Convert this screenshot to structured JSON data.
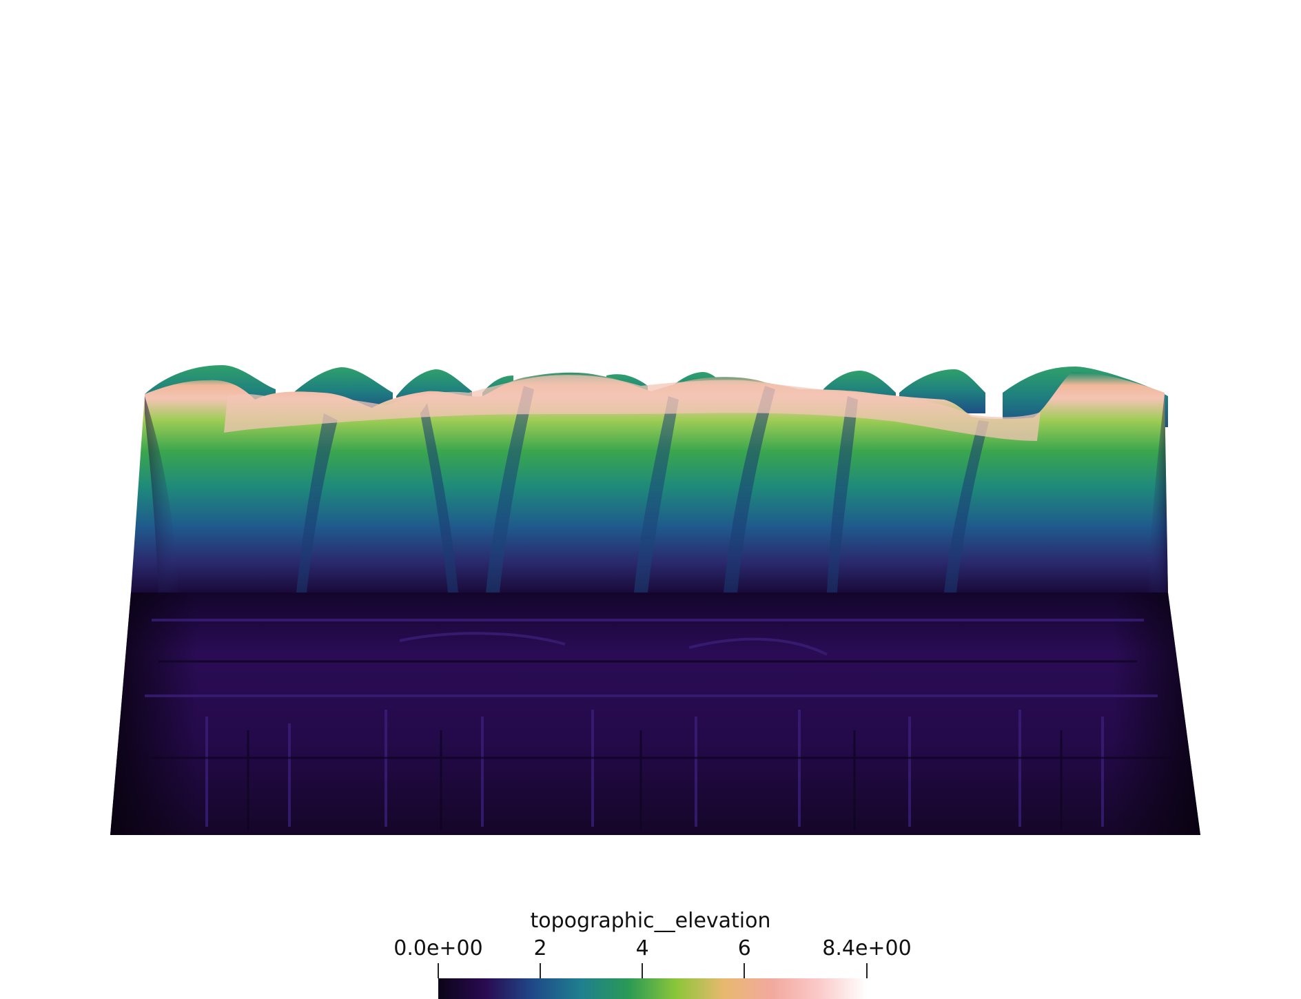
{
  "scene": {
    "background": "#ffffff",
    "colormap": "viridis-pink",
    "colormap_stops": [
      "#0b0418",
      "#2a0a52",
      "#1f4a8a",
      "#1f7f8f",
      "#2a9a55",
      "#8cc63a",
      "#e8b870",
      "#f2a99e",
      "#fbcaca",
      "#ffffff"
    ]
  },
  "legend": {
    "title": "topographic__elevation",
    "range": [
      0,
      8.4
    ],
    "ticks": [
      {
        "value": 0,
        "label": "0.0e+00"
      },
      {
        "value": 2,
        "label": "2"
      },
      {
        "value": 4,
        "label": "4"
      },
      {
        "value": 6,
        "label": "6"
      },
      {
        "value": 8.4,
        "label": "8.4e+00"
      }
    ]
  }
}
